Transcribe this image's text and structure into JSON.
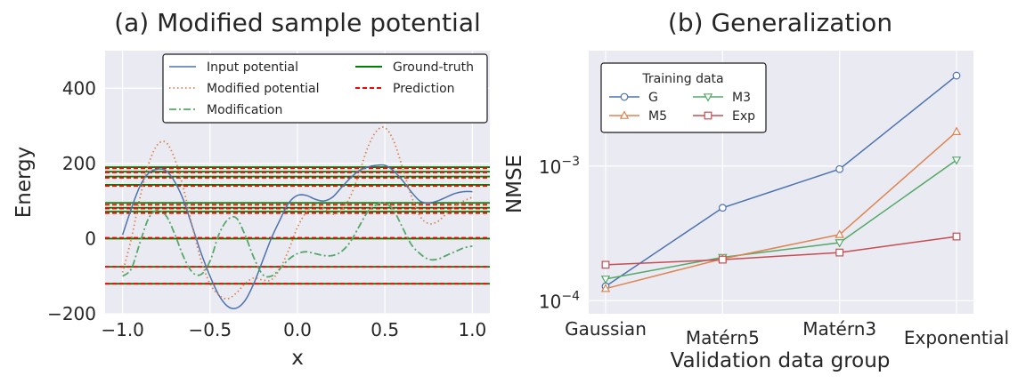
{
  "chart_data": [
    {
      "type": "line",
      "title": "(a) Modified sample potential",
      "xlabel": "x",
      "ylabel": "Energy",
      "xlim": [
        -1.1,
        1.1
      ],
      "ylim": [
        -200,
        500
      ],
      "xticks": [
        -1.0,
        -0.5,
        0.0,
        0.5,
        1.0
      ],
      "xtick_labels": [
        "−1.0",
        "−0.5",
        "0.0",
        "0.5",
        "1.0"
      ],
      "yticks": [
        -200,
        0,
        200,
        400
      ],
      "ytick_labels": [
        "−200",
        "0",
        "200",
        "400"
      ],
      "grid": true,
      "legend_position": "top",
      "legend_columns": 2,
      "series": [
        {
          "name": "Input potential",
          "style": "solid",
          "color": "#4c72b0",
          "x": [
            -1.0,
            -0.95,
            -0.9,
            -0.85,
            -0.8,
            -0.75,
            -0.7,
            -0.65,
            -0.6,
            -0.55,
            -0.5,
            -0.45,
            -0.4,
            -0.35,
            -0.3,
            -0.25,
            -0.2,
            -0.15,
            -0.1,
            -0.05,
            0.0,
            0.05,
            0.1,
            0.15,
            0.2,
            0.25,
            0.3,
            0.35,
            0.4,
            0.45,
            0.5,
            0.55,
            0.6,
            0.65,
            0.7,
            0.75,
            0.8,
            0.85,
            0.9,
            0.95,
            1.0
          ],
          "y": [
            10,
            80,
            140,
            175,
            185,
            180,
            150,
            100,
            30,
            -40,
            -100,
            -150,
            -180,
            -185,
            -165,
            -120,
            -60,
            0,
            50,
            95,
            115,
            115,
            105,
            100,
            110,
            135,
            160,
            180,
            190,
            195,
            195,
            180,
            155,
            125,
            100,
            95,
            100,
            110,
            120,
            125,
            125
          ]
        },
        {
          "name": "Modified potential",
          "style": "dotted",
          "color": "#dd8452",
          "x": [
            -1.0,
            -0.95,
            -0.9,
            -0.85,
            -0.8,
            -0.75,
            -0.7,
            -0.65,
            -0.6,
            -0.55,
            -0.5,
            -0.45,
            -0.4,
            -0.35,
            -0.3,
            -0.25,
            -0.2,
            -0.15,
            -0.1,
            -0.05,
            0.0,
            0.05,
            0.1,
            0.15,
            0.2,
            0.25,
            0.3,
            0.35,
            0.4,
            0.45,
            0.5,
            0.55,
            0.6,
            0.65,
            0.7,
            0.75,
            0.8,
            0.85,
            0.9,
            0.95,
            1.0
          ],
          "y": [
            -90,
            0,
            110,
            200,
            250,
            255,
            210,
            130,
            30,
            -60,
            -120,
            -150,
            -160,
            -145,
            -120,
            -105,
            -110,
            -110,
            -80,
            -30,
            30,
            70,
            90,
            80,
            65,
            75,
            110,
            170,
            240,
            285,
            295,
            260,
            190,
            115,
            60,
            40,
            45,
            65,
            85,
            100,
            110
          ]
        },
        {
          "name": "Modification",
          "style": "dashdot",
          "color": "#55a868",
          "x": [
            -1.0,
            -0.95,
            -0.9,
            -0.85,
            -0.8,
            -0.75,
            -0.7,
            -0.65,
            -0.6,
            -0.55,
            -0.5,
            -0.45,
            -0.4,
            -0.35,
            -0.3,
            -0.25,
            -0.2,
            -0.15,
            -0.1,
            -0.05,
            0.0,
            0.05,
            0.1,
            0.15,
            0.2,
            0.25,
            0.3,
            0.35,
            0.4,
            0.45,
            0.5,
            0.55,
            0.6,
            0.65,
            0.7,
            0.75,
            0.8,
            0.85,
            0.9,
            0.95,
            1.0
          ],
          "y": [
            -100,
            -80,
            -10,
            55,
            75,
            60,
            10,
            -50,
            -90,
            -95,
            -60,
            10,
            50,
            55,
            10,
            -50,
            -95,
            -100,
            -80,
            -55,
            -40,
            -35,
            -40,
            -45,
            -45,
            -35,
            -10,
            30,
            70,
            90,
            95,
            75,
            30,
            -15,
            -40,
            -55,
            -55,
            -45,
            -35,
            -25,
            -20
          ]
        }
      ],
      "levels": [
        {
          "name": "Ground-truth",
          "style": "solid",
          "color": "#008000",
          "values": [
            -120,
            -75,
            0,
            72,
            82,
            95,
            143,
            165,
            178,
            190
          ]
        },
        {
          "name": "Prediction",
          "style": "dashed",
          "color": "#ff0000",
          "values": [
            -120,
            -75,
            2,
            68,
            80,
            90,
            140,
            162,
            176,
            187
          ]
        }
      ]
    },
    {
      "type": "line",
      "title": "(b) Generalization",
      "xlabel": "Validation data group",
      "ylabel": "NMSE",
      "yscale": "log",
      "ylim": [
        8e-05,
        0.0072
      ],
      "categories": [
        "Gaussian",
        "Matérn5",
        "Matérn3",
        "Exponential"
      ],
      "yticks": [
        0.0001,
        0.001
      ],
      "ytick_labels": [
        {
          "base": "10",
          "exp": "−4"
        },
        {
          "base": "10",
          "exp": "−3"
        }
      ],
      "grid": true,
      "legend_title": "Training data",
      "legend_position": "top-left",
      "legend_columns": 2,
      "series": [
        {
          "name": "G",
          "color": "#4c72b0",
          "marker": "circle",
          "values": [
            0.000128,
            0.00049,
            0.00095,
            0.0047
          ]
        },
        {
          "name": "M3",
          "color": "#55a868",
          "marker": "triangle-down",
          "values": [
            0.000145,
            0.00021,
            0.00027,
            0.00111
          ]
        },
        {
          "name": "M5",
          "color": "#dd8452",
          "marker": "triangle-up",
          "values": [
            0.000123,
            0.000205,
            0.00031,
            0.0018
          ]
        },
        {
          "name": "Exp",
          "color": "#c44e52",
          "marker": "square",
          "values": [
            0.000185,
            0.000202,
            0.000228,
            0.0003
          ]
        }
      ]
    }
  ]
}
